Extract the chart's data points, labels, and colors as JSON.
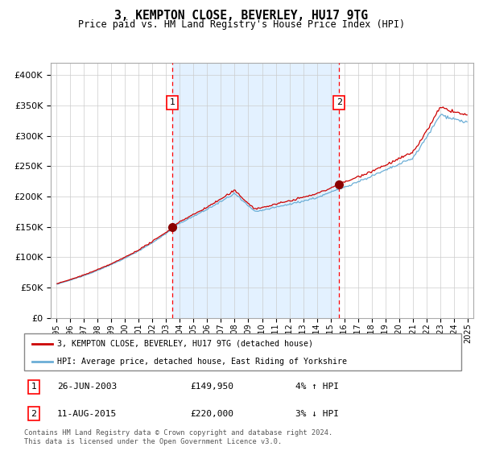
{
  "title": "3, KEMPTON CLOSE, BEVERLEY, HU17 9TG",
  "subtitle": "Price paid vs. HM Land Registry's House Price Index (HPI)",
  "sale1_date": "26-JUN-2003",
  "sale1_price": 149950,
  "sale1_hpi": "4% ↑ HPI",
  "sale2_date": "11-AUG-2015",
  "sale2_price": 220000,
  "sale2_hpi": "3% ↓ HPI",
  "legend1": "3, KEMPTON CLOSE, BEVERLEY, HU17 9TG (detached house)",
  "legend2": "HPI: Average price, detached house, East Riding of Yorkshire",
  "footer": "Contains HM Land Registry data © Crown copyright and database right 2024.\nThis data is licensed under the Open Government Licence v3.0.",
  "hpi_color": "#6baed6",
  "price_color": "#cc0000",
  "bg_shade_color": "#ddeeff",
  "ylim_min": 0,
  "ylim_max": 420000,
  "start_year": 1995,
  "end_year": 2025
}
